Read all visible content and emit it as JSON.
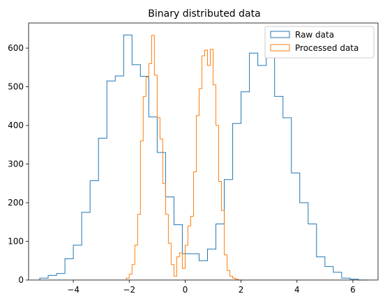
{
  "chart_data": {
    "type": "histogram",
    "title": "Binary distributed data",
    "xlabel": "",
    "ylabel": "",
    "xlim": [
      -5.6,
      6.9
    ],
    "ylim": [
      0,
      665
    ],
    "xticks": [
      -4,
      -2,
      0,
      2,
      4,
      6
    ],
    "xtick_labels": [
      "−4",
      "−2",
      "0",
      "2",
      "4",
      "6"
    ],
    "yticks": [
      0,
      100,
      200,
      300,
      400,
      500,
      600
    ],
    "ytick_labels": [
      "0",
      "100",
      "200",
      "300",
      "400",
      "500",
      "600"
    ],
    "grid": false,
    "legend_position": "top-right",
    "series": [
      {
        "name": "Raw data",
        "color": "#1f77b4",
        "style": "step",
        "edges": [
          -5.2,
          -4.9,
          -4.6,
          -4.3,
          -4.0,
          -3.7,
          -3.4,
          -3.1,
          -2.8,
          -2.5,
          -2.2,
          -1.9,
          -1.6,
          -1.3,
          -1.0,
          -0.7,
          -0.4,
          -0.1,
          0.2,
          0.5,
          0.8,
          1.1,
          1.4,
          1.7,
          2.0,
          2.3,
          2.6,
          2.9,
          3.2,
          3.5,
          3.8,
          4.1,
          4.4,
          4.7,
          5.0,
          5.3,
          5.6,
          5.9,
          6.2,
          6.5
        ],
        "counts": [
          5,
          12,
          17,
          55,
          90,
          175,
          257,
          367,
          515,
          528,
          634,
          557,
          527,
          422,
          330,
          215,
          143,
          68,
          68,
          50,
          80,
          145,
          260,
          405,
          487,
          587,
          555,
          575,
          475,
          420,
          277,
          200,
          145,
          60,
          35,
          20,
          5,
          2,
          0
        ]
      },
      {
        "name": "Processed data",
        "color": "#ff7f0e",
        "style": "step",
        "edges": [
          -2.1,
          -2.0,
          -1.9,
          -1.8,
          -1.7,
          -1.6,
          -1.5,
          -1.4,
          -1.3,
          -1.2,
          -1.1,
          -1.0,
          -0.9,
          -0.8,
          -0.7,
          -0.6,
          -0.5,
          -0.4,
          -0.3,
          -0.2,
          -0.1,
          0.0,
          0.1,
          0.2,
          0.3,
          0.4,
          0.5,
          0.6,
          0.7,
          0.8,
          0.9,
          1.0,
          1.1,
          1.2,
          1.3,
          1.4,
          1.5,
          1.6,
          1.7,
          1.8,
          1.9,
          2.0,
          2.1
        ],
        "counts": [
          5,
          15,
          40,
          90,
          170,
          360,
          475,
          525,
          560,
          633,
          530,
          420,
          365,
          250,
          170,
          95,
          40,
          10,
          60,
          70,
          30,
          90,
          140,
          165,
          280,
          425,
          495,
          580,
          595,
          555,
          597,
          505,
          400,
          255,
          180,
          65,
          25,
          10,
          5,
          2,
          0,
          0
        ]
      }
    ]
  }
}
